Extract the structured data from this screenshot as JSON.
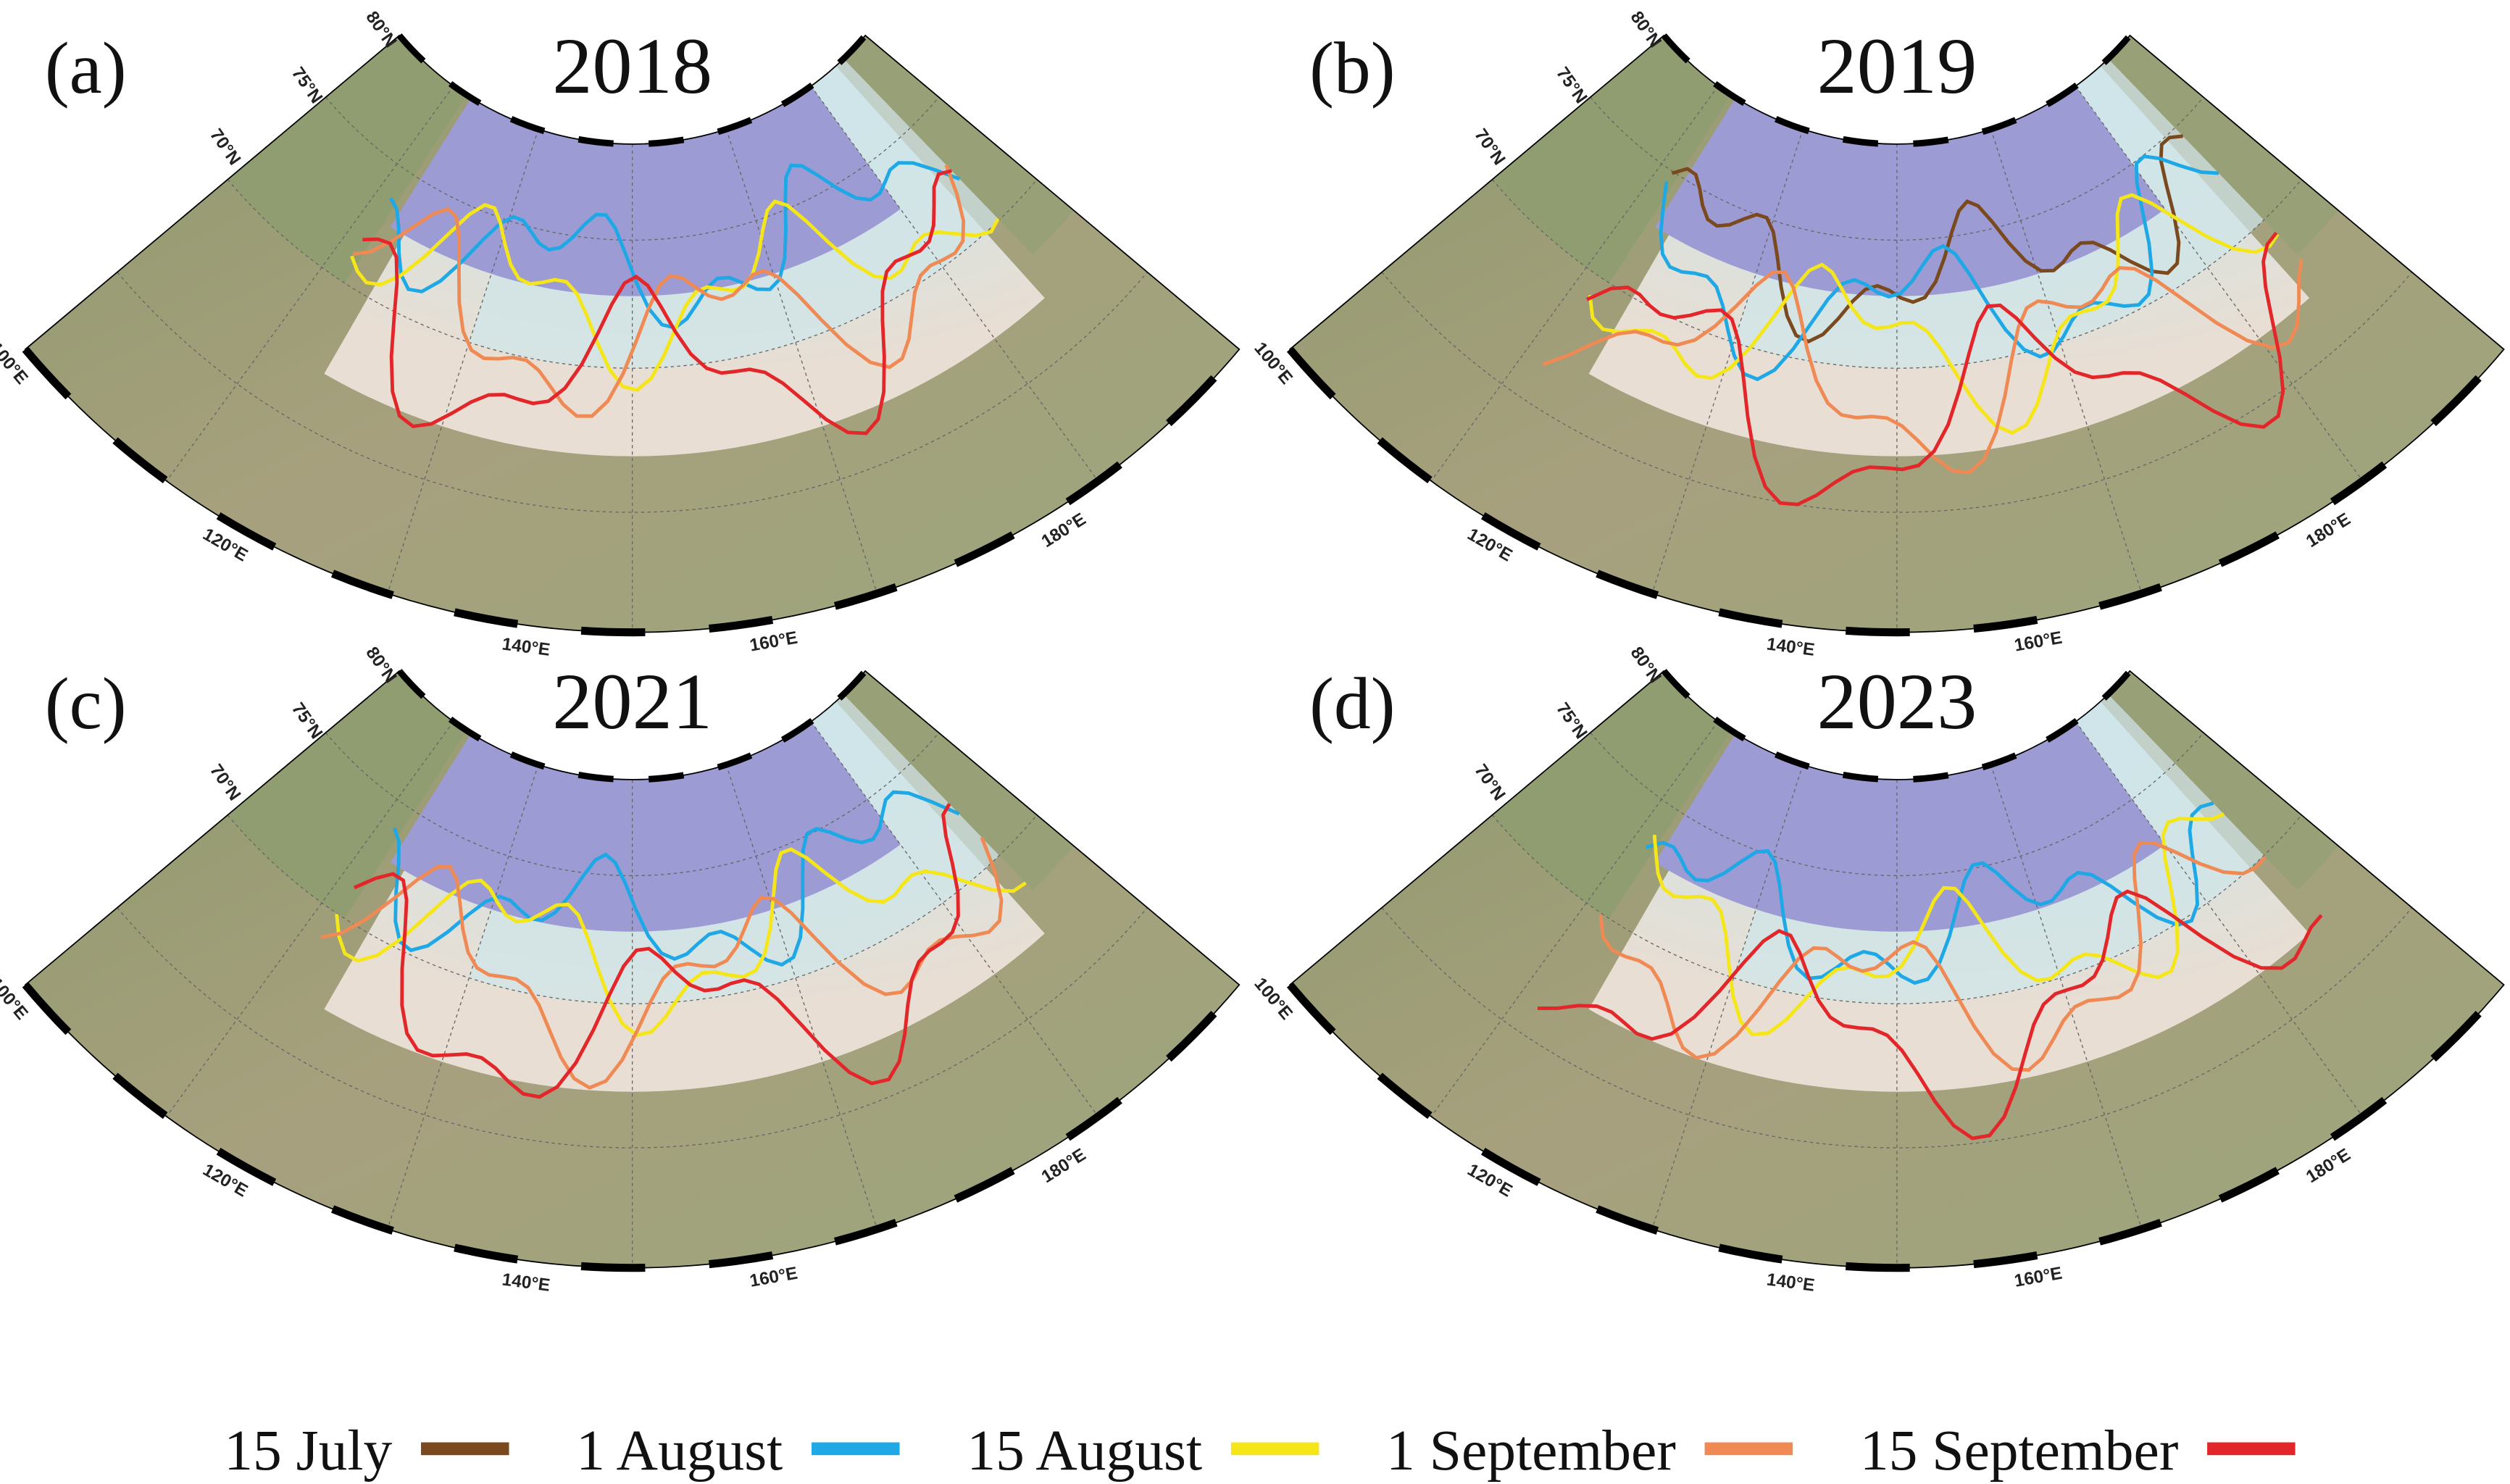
{
  "panels": [
    {
      "label": "(a)",
      "year": "2018"
    },
    {
      "label": "(b)",
      "year": "2019"
    },
    {
      "label": "(c)",
      "year": "2021"
    },
    {
      "label": "(d)",
      "year": "2023"
    }
  ],
  "latitude_labels": [
    "80°N",
    "75°N",
    "70°N"
  ],
  "longitude_labels": [
    "100°E",
    "120°E",
    "140°E",
    "160°E",
    "180°E"
  ],
  "legend": [
    {
      "name": "15 July",
      "color": "#7a4a1e"
    },
    {
      "name": "1 August",
      "color": "#1ea8e6"
    },
    {
      "name": "15 August",
      "color": "#f5e61a"
    },
    {
      "name": "1 September",
      "color": "#f08a55"
    },
    {
      "name": "15 September",
      "color": "#e3262a"
    }
  ]
}
